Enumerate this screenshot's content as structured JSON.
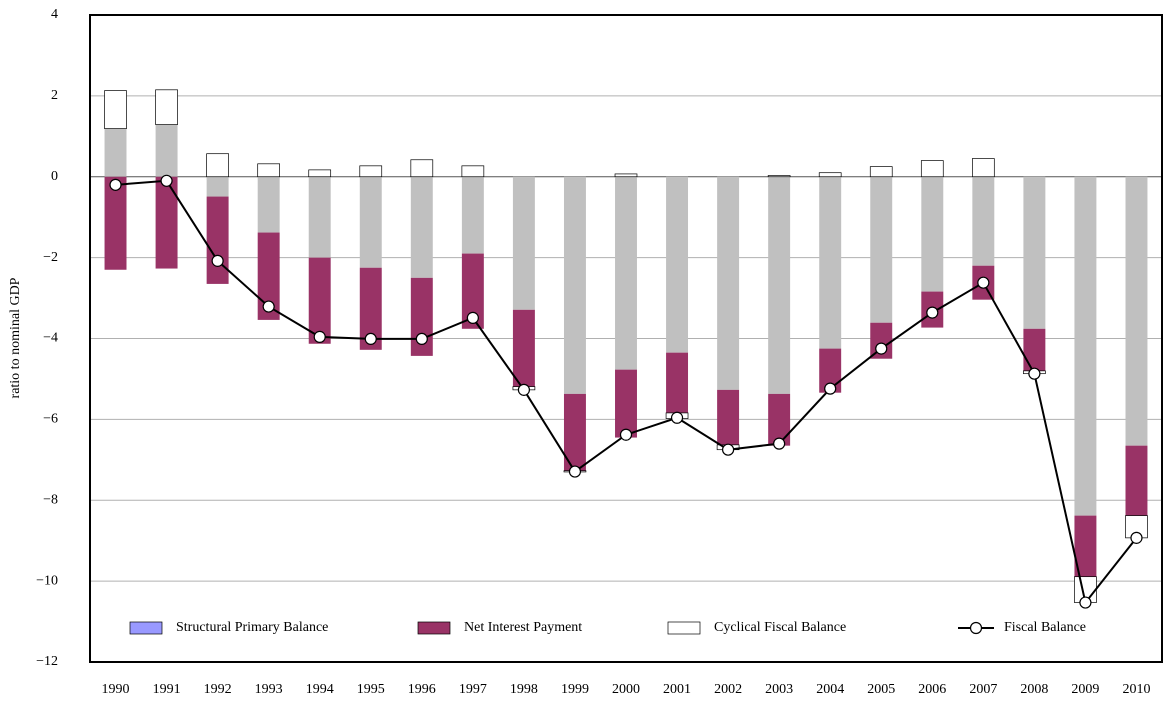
{
  "chart_data": {
    "type": "bar",
    "stacked": true,
    "y_label": "ratio to nominal GDP",
    "categories": [
      "1990",
      "1991",
      "1992",
      "1993",
      "1994",
      "1995",
      "1996",
      "1997",
      "1998",
      "1999",
      "2000",
      "2001",
      "2002",
      "2003",
      "2004",
      "2005",
      "2006",
      "2007",
      "2008",
      "2009",
      "2010"
    ],
    "ylim": [
      -12,
      4
    ],
    "yticks": [
      {
        "value": -12,
        "label": "−12"
      },
      {
        "value": -10,
        "label": "−10"
      },
      {
        "value": -8,
        "label": "−8"
      },
      {
        "value": -6,
        "label": "−6"
      },
      {
        "value": -4,
        "label": "−4"
      },
      {
        "value": -2,
        "label": "−2"
      },
      0,
      2,
      4
    ],
    "grid": true,
    "legend": "bottom",
    "series": [
      {
        "name": "Structural Primary Balance",
        "type": "bar",
        "color": "#c0c0c0",
        "legend_color": "#9999ff",
        "values": [
          1.19,
          1.29,
          -0.49,
          -1.38,
          -2.0,
          -2.25,
          -2.5,
          -1.9,
          -3.29,
          -5.37,
          -4.77,
          -4.35,
          -5.27,
          -5.37,
          -4.25,
          -3.61,
          -2.84,
          -2.2,
          -3.76,
          -8.38,
          -6.65
        ]
      },
      {
        "name": "Net Interest Payment",
        "type": "bar",
        "color": "#993366",
        "values": [
          -2.3,
          -2.27,
          -2.16,
          -2.16,
          -2.13,
          -2.03,
          -1.93,
          -1.86,
          -1.9,
          -1.9,
          -1.68,
          -1.49,
          -1.36,
          -1.28,
          -1.09,
          -0.89,
          -0.89,
          -0.84,
          -1.04,
          -1.51,
          -1.73
        ]
      },
      {
        "name": "Cyclical Fiscal Balance",
        "type": "bar",
        "color": "#ffffff",
        "values": [
          0.94,
          0.86,
          0.57,
          0.32,
          0.17,
          0.27,
          0.42,
          0.27,
          -0.08,
          -0.03,
          0.07,
          -0.14,
          -0.12,
          0.03,
          0.1,
          0.25,
          0.4,
          0.45,
          -0.07,
          -0.64,
          -0.55
        ]
      },
      {
        "name": "Fiscal Balance",
        "type": "line",
        "color": "#000000",
        "values": [
          -0.2,
          -0.1,
          -2.08,
          -3.21,
          -3.96,
          -4.01,
          -4.01,
          -3.49,
          -5.27,
          -7.29,
          -6.38,
          -5.96,
          -6.75,
          -6.6,
          -5.24,
          -4.25,
          -3.36,
          -2.62,
          -4.87,
          -10.53,
          -8.93
        ]
      }
    ]
  }
}
